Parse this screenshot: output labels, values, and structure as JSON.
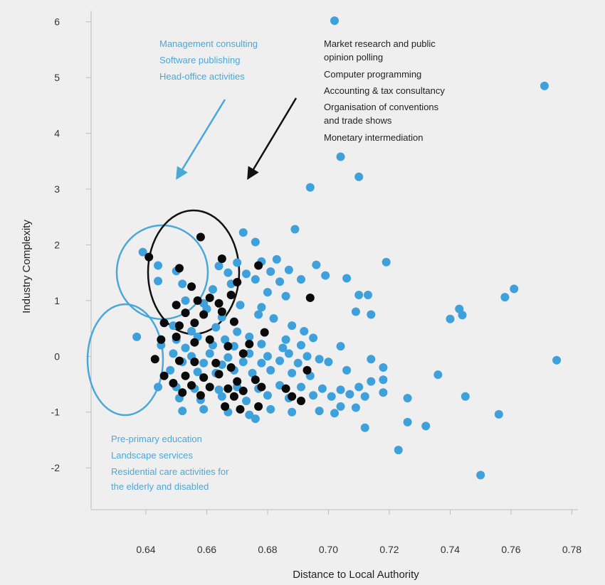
{
  "chart_data": {
    "type": "scatter",
    "xlabel": "Distance to Local Authority",
    "ylabel": "Industry Complexity",
    "xlim": [
      0.622,
      0.782
    ],
    "ylim": [
      -2.75,
      6.2
    ],
    "x_ticks": [
      "0.64",
      "0.66",
      "0.68",
      "0.70",
      "0.72",
      "0.74",
      "0.76",
      "0.78"
    ],
    "y_ticks": [
      "-2",
      "-1",
      "0",
      "1",
      "2",
      "3",
      "4",
      "5",
      "6"
    ],
    "grid": false,
    "colors": {
      "blue": "#3ea1dc",
      "black": "#0a0a0a",
      "annotation_blue": "#4aa8d8"
    },
    "annotations": {
      "blue_top": [
        "Management consulting",
        "Software publishing",
        "Head-office activities"
      ],
      "black_top": [
        "Market research and public",
        "opinion polling",
        "Computer programming",
        "Accounting & tax consultancy",
        "Organisation of conventions",
        "and trade shows",
        "Monetary intermediation"
      ],
      "blue_bottom": [
        "Pre-primary education",
        "Landscape  services",
        "Residential care activities for",
        "the elderly and disabled"
      ]
    },
    "series": [
      {
        "color": "blue",
        "points": [
          [
            0.702,
            6.02
          ],
          [
            0.771,
            4.85
          ],
          [
            0.704,
            3.58
          ],
          [
            0.71,
            3.22
          ],
          [
            0.694,
            3.03
          ],
          [
            0.689,
            2.28
          ],
          [
            0.672,
            2.22
          ],
          [
            0.676,
            2.05
          ],
          [
            0.639,
            1.87
          ],
          [
            0.644,
            1.63
          ],
          [
            0.664,
            1.62
          ],
          [
            0.67,
            1.68
          ],
          [
            0.678,
            1.7
          ],
          [
            0.683,
            1.74
          ],
          [
            0.696,
            1.64
          ],
          [
            0.719,
            1.69
          ],
          [
            0.65,
            1.53
          ],
          [
            0.667,
            1.5
          ],
          [
            0.673,
            1.48
          ],
          [
            0.681,
            1.52
          ],
          [
            0.687,
            1.55
          ],
          [
            0.699,
            1.45
          ],
          [
            0.706,
            1.4
          ],
          [
            0.644,
            1.35
          ],
          [
            0.652,
            1.3
          ],
          [
            0.668,
            1.3
          ],
          [
            0.676,
            1.38
          ],
          [
            0.684,
            1.34
          ],
          [
            0.691,
            1.38
          ],
          [
            0.662,
            1.2
          ],
          [
            0.68,
            1.15
          ],
          [
            0.686,
            1.08
          ],
          [
            0.71,
            1.1
          ],
          [
            0.713,
            1.1
          ],
          [
            0.758,
            1.06
          ],
          [
            0.761,
            1.21
          ],
          [
            0.653,
            1.0
          ],
          [
            0.659,
            0.95
          ],
          [
            0.671,
            0.92
          ],
          [
            0.678,
            0.88
          ],
          [
            0.709,
            0.8
          ],
          [
            0.714,
            0.75
          ],
          [
            0.743,
            0.85
          ],
          [
            0.744,
            0.74
          ],
          [
            0.74,
            0.67
          ],
          [
            0.66,
            0.85
          ],
          [
            0.665,
            0.7
          ],
          [
            0.677,
            0.75
          ],
          [
            0.682,
            0.68
          ],
          [
            0.649,
            0.55
          ],
          [
            0.655,
            0.45
          ],
          [
            0.663,
            0.52
          ],
          [
            0.67,
            0.44
          ],
          [
            0.688,
            0.55
          ],
          [
            0.692,
            0.45
          ],
          [
            0.637,
            0.35
          ],
          [
            0.65,
            0.3
          ],
          [
            0.657,
            0.35
          ],
          [
            0.666,
            0.3
          ],
          [
            0.674,
            0.35
          ],
          [
            0.686,
            0.3
          ],
          [
            0.695,
            0.33
          ],
          [
            0.645,
            0.2
          ],
          [
            0.653,
            0.15
          ],
          [
            0.662,
            0.2
          ],
          [
            0.669,
            0.18
          ],
          [
            0.678,
            0.22
          ],
          [
            0.685,
            0.15
          ],
          [
            0.691,
            0.2
          ],
          [
            0.704,
            0.18
          ],
          [
            0.649,
            0.05
          ],
          [
            0.655,
            0.0
          ],
          [
            0.661,
            0.05
          ],
          [
            0.667,
            -0.02
          ],
          [
            0.674,
            0.05
          ],
          [
            0.68,
            0.0
          ],
          [
            0.687,
            0.05
          ],
          [
            0.693,
            0.0
          ],
          [
            0.697,
            -0.05
          ],
          [
            0.652,
            -0.1
          ],
          [
            0.659,
            -0.12
          ],
          [
            0.665,
            -0.15
          ],
          [
            0.672,
            -0.1
          ],
          [
            0.678,
            -0.12
          ],
          [
            0.684,
            -0.08
          ],
          [
            0.69,
            -0.12
          ],
          [
            0.7,
            -0.1
          ],
          [
            0.714,
            -0.05
          ],
          [
            0.775,
            -0.07
          ],
          [
            0.648,
            -0.25
          ],
          [
            0.657,
            -0.28
          ],
          [
            0.663,
            -0.3
          ],
          [
            0.669,
            -0.25
          ],
          [
            0.675,
            -0.3
          ],
          [
            0.681,
            -0.25
          ],
          [
            0.688,
            -0.3
          ],
          [
            0.694,
            -0.35
          ],
          [
            0.706,
            -0.25
          ],
          [
            0.718,
            -0.2
          ],
          [
            0.736,
            -0.33
          ],
          [
            0.644,
            -0.55
          ],
          [
            0.65,
            -0.55
          ],
          [
            0.656,
            -0.58
          ],
          [
            0.664,
            -0.6
          ],
          [
            0.67,
            -0.55
          ],
          [
            0.677,
            -0.58
          ],
          [
            0.684,
            -0.52
          ],
          [
            0.691,
            -0.55
          ],
          [
            0.698,
            -0.58
          ],
          [
            0.704,
            -0.6
          ],
          [
            0.71,
            -0.55
          ],
          [
            0.714,
            -0.45
          ],
          [
            0.718,
            -0.42
          ],
          [
            0.651,
            -0.75
          ],
          [
            0.658,
            -0.78
          ],
          [
            0.665,
            -0.72
          ],
          [
            0.673,
            -0.8
          ],
          [
            0.68,
            -0.7
          ],
          [
            0.687,
            -0.75
          ],
          [
            0.695,
            -0.7
          ],
          [
            0.701,
            -0.72
          ],
          [
            0.707,
            -0.68
          ],
          [
            0.712,
            -0.72
          ],
          [
            0.718,
            -0.65
          ],
          [
            0.726,
            -0.75
          ],
          [
            0.745,
            -0.72
          ],
          [
            0.652,
            -0.98
          ],
          [
            0.659,
            -0.95
          ],
          [
            0.667,
            -1.0
          ],
          [
            0.674,
            -1.05
          ],
          [
            0.681,
            -0.95
          ],
          [
            0.688,
            -1.0
          ],
          [
            0.697,
            -0.98
          ],
          [
            0.704,
            -0.9
          ],
          [
            0.709,
            -0.92
          ],
          [
            0.702,
            -1.02
          ],
          [
            0.676,
            -1.12
          ],
          [
            0.712,
            -1.28
          ],
          [
            0.726,
            -1.18
          ],
          [
            0.732,
            -1.25
          ],
          [
            0.756,
            -1.04
          ],
          [
            0.723,
            -1.68
          ],
          [
            0.75,
            -2.13
          ]
        ]
      },
      {
        "color": "black",
        "points": [
          [
            0.641,
            1.78
          ],
          [
            0.658,
            2.14
          ],
          [
            0.651,
            1.58
          ],
          [
            0.665,
            1.75
          ],
          [
            0.677,
            1.63
          ],
          [
            0.67,
            1.33
          ],
          [
            0.655,
            1.25
          ],
          [
            0.661,
            1.05
          ],
          [
            0.65,
            0.92
          ],
          [
            0.657,
            1.0
          ],
          [
            0.664,
            0.95
          ],
          [
            0.668,
            1.1
          ],
          [
            0.653,
            0.78
          ],
          [
            0.659,
            0.75
          ],
          [
            0.665,
            0.8
          ],
          [
            0.669,
            0.62
          ],
          [
            0.646,
            0.6
          ],
          [
            0.651,
            0.55
          ],
          [
            0.656,
            0.6
          ],
          [
            0.694,
            1.05
          ],
          [
            0.65,
            0.35
          ],
          [
            0.656,
            0.25
          ],
          [
            0.661,
            0.3
          ],
          [
            0.645,
            0.3
          ],
          [
            0.679,
            0.43
          ],
          [
            0.667,
            0.18
          ],
          [
            0.674,
            0.22
          ],
          [
            0.672,
            0.05
          ],
          [
            0.643,
            -0.05
          ],
          [
            0.651,
            -0.08
          ],
          [
            0.656,
            -0.1
          ],
          [
            0.663,
            -0.12
          ],
          [
            0.668,
            -0.2
          ],
          [
            0.693,
            -0.25
          ],
          [
            0.646,
            -0.35
          ],
          [
            0.653,
            -0.35
          ],
          [
            0.659,
            -0.38
          ],
          [
            0.664,
            -0.32
          ],
          [
            0.67,
            -0.45
          ],
          [
            0.676,
            -0.42
          ],
          [
            0.649,
            -0.48
          ],
          [
            0.655,
            -0.52
          ],
          [
            0.661,
            -0.55
          ],
          [
            0.667,
            -0.58
          ],
          [
            0.672,
            -0.62
          ],
          [
            0.678,
            -0.55
          ],
          [
            0.686,
            -0.58
          ],
          [
            0.652,
            -0.65
          ],
          [
            0.658,
            -0.7
          ],
          [
            0.669,
            -0.72
          ],
          [
            0.688,
            -0.72
          ],
          [
            0.691,
            -0.8
          ],
          [
            0.666,
            -0.9
          ],
          [
            0.677,
            -0.9
          ],
          [
            0.671,
            -0.95
          ]
        ]
      }
    ]
  }
}
